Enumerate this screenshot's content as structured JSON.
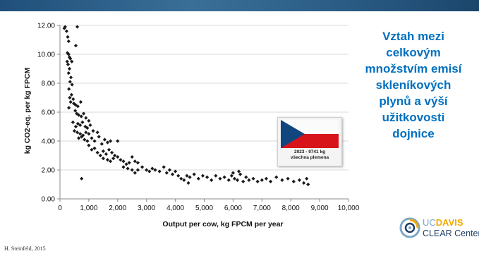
{
  "caption": {
    "lines": [
      "Vztah mezi",
      "celkovým",
      "množstvím emisí",
      "skleníkových",
      "plynů a výší",
      "užitkovosti",
      "dojnice"
    ],
    "color": "#0070c0"
  },
  "flag_card": {
    "line1": "2023 - 9741 kg",
    "line2": "všechna plemena",
    "flag_colors": [
      "#ffffff",
      "#d7141a",
      "#11457e"
    ]
  },
  "credit": "H. Steinfeld, 2015",
  "logo": {
    "uc": "UC",
    "davis": "DAVIS",
    "center": "CLEAR Center",
    "icon": "clear-center-swirl-icon"
  },
  "chart_data": {
    "type": "scatter",
    "xlabel": "Output per cow, kg FPCM per year",
    "ylabel": "kg CO2-eq. per kg FPCM",
    "xlim": [
      0,
      10000
    ],
    "ylim": [
      0,
      12
    ],
    "x_ticks": [
      0,
      1000,
      2000,
      3000,
      4000,
      5000,
      6000,
      7000,
      8000,
      9000,
      10000
    ],
    "x_tick_labels": [
      "0",
      "1,000",
      "2,000",
      "3,000",
      "4,000",
      "5,000",
      "6,000",
      "7,000",
      "8,000",
      "9,000",
      "10,000"
    ],
    "y_ticks": [
      0,
      2,
      4,
      6,
      8,
      10,
      12
    ],
    "y_tick_labels": [
      "0.00",
      "2.00",
      "4.00",
      "6.00",
      "8.00",
      "10.00",
      "12.00"
    ],
    "grid": true,
    "marker": "diamond",
    "marker_color": "#1a1a1a",
    "points": [
      [
        150,
        11.8
      ],
      [
        180,
        11.9
      ],
      [
        600,
        11.9
      ],
      [
        230,
        11.6
      ],
      [
        270,
        11.2
      ],
      [
        300,
        10.9
      ],
      [
        550,
        10.6
      ],
      [
        260,
        10.1
      ],
      [
        300,
        10.0
      ],
      [
        330,
        9.8
      ],
      [
        250,
        9.5
      ],
      [
        280,
        9.3
      ],
      [
        360,
        9.7
      ],
      [
        410,
        9.5
      ],
      [
        330,
        9.0
      ],
      [
        300,
        8.7
      ],
      [
        380,
        8.4
      ],
      [
        350,
        8.1
      ],
      [
        420,
        7.9
      ],
      [
        310,
        7.6
      ],
      [
        400,
        7.2
      ],
      [
        340,
        7.0
      ],
      [
        460,
        6.9
      ],
      [
        370,
        6.7
      ],
      [
        480,
        6.6
      ],
      [
        540,
        6.5
      ],
      [
        310,
        6.3
      ],
      [
        620,
        6.4
      ],
      [
        720,
        6.7
      ],
      [
        530,
        6.1
      ],
      [
        580,
        5.9
      ],
      [
        650,
        5.8
      ],
      [
        740,
        5.7
      ],
      [
        820,
        5.9
      ],
      [
        900,
        5.6
      ],
      [
        450,
        5.3
      ],
      [
        550,
        5.0
      ],
      [
        620,
        5.2
      ],
      [
        700,
        5.1
      ],
      [
        780,
        5.3
      ],
      [
        880,
        5.0
      ],
      [
        950,
        4.9
      ],
      [
        1000,
        5.4
      ],
      [
        1050,
        5.1
      ],
      [
        500,
        4.7
      ],
      [
        600,
        4.6
      ],
      [
        700,
        4.5
      ],
      [
        800,
        4.4
      ],
      [
        900,
        4.6
      ],
      [
        1000,
        4.5
      ],
      [
        1150,
        4.7
      ],
      [
        1300,
        4.6
      ],
      [
        650,
        4.2
      ],
      [
        750,
        4.3
      ],
      [
        850,
        4.1
      ],
      [
        950,
        4.0
      ],
      [
        1100,
        4.2
      ],
      [
        1200,
        4.0
      ],
      [
        1350,
        4.3
      ],
      [
        1450,
        3.8
      ],
      [
        1550,
        4.1
      ],
      [
        1650,
        3.9
      ],
      [
        1750,
        4.0
      ],
      [
        1000,
        3.7
      ],
      [
        1100,
        3.4
      ],
      [
        1200,
        3.5
      ],
      [
        1300,
        3.2
      ],
      [
        1400,
        3.0
      ],
      [
        1500,
        3.3
      ],
      [
        1600,
        3.1
      ],
      [
        1700,
        3.4
      ],
      [
        1800,
        3.2
      ],
      [
        1900,
        3.0
      ],
      [
        2000,
        4.0
      ],
      [
        1500,
        2.8
      ],
      [
        1650,
        2.7
      ],
      [
        1750,
        2.6
      ],
      [
        1850,
        2.8
      ],
      [
        2000,
        2.9
      ],
      [
        2100,
        2.7
      ],
      [
        2200,
        2.6
      ],
      [
        2300,
        2.4
      ],
      [
        2400,
        2.5
      ],
      [
        2500,
        2.9
      ],
      [
        2600,
        2.6
      ],
      [
        2700,
        2.5
      ],
      [
        2200,
        2.2
      ],
      [
        2350,
        2.1
      ],
      [
        2500,
        2.0
      ],
      [
        2600,
        1.8
      ],
      [
        2700,
        2.0
      ],
      [
        2850,
        2.2
      ],
      [
        3000,
        2.0
      ],
      [
        3100,
        1.9
      ],
      [
        3200,
        2.1
      ],
      [
        3300,
        2.0
      ],
      [
        3450,
        1.9
      ],
      [
        3600,
        2.2
      ],
      [
        3700,
        1.8
      ],
      [
        3800,
        2.0
      ],
      [
        3900,
        1.7
      ],
      [
        4000,
        1.9
      ],
      [
        4100,
        1.6
      ],
      [
        4200,
        1.4
      ],
      [
        4300,
        1.3
      ],
      [
        4400,
        1.6
      ],
      [
        4500,
        1.5
      ],
      [
        4650,
        1.7
      ],
      [
        4800,
        1.4
      ],
      [
        4950,
        1.6
      ],
      [
        5100,
        1.5
      ],
      [
        5250,
        1.3
      ],
      [
        5400,
        1.6
      ],
      [
        5550,
        1.4
      ],
      [
        5700,
        1.5
      ],
      [
        5850,
        1.3
      ],
      [
        5950,
        1.6
      ],
      [
        6050,
        1.4
      ],
      [
        6150,
        1.3
      ],
      [
        6250,
        1.7
      ],
      [
        6350,
        1.2
      ],
      [
        6450,
        1.5
      ],
      [
        6550,
        1.3
      ],
      [
        6700,
        1.4
      ],
      [
        6850,
        1.2
      ],
      [
        7000,
        1.3
      ],
      [
        7150,
        1.4
      ],
      [
        7300,
        1.2
      ],
      [
        7500,
        1.5
      ],
      [
        7700,
        1.3
      ],
      [
        7900,
        1.4
      ],
      [
        8100,
        1.2
      ],
      [
        8300,
        1.3
      ],
      [
        8450,
        1.1
      ],
      [
        8550,
        1.4
      ],
      [
        8600,
        1.0
      ],
      [
        4450,
        1.1
      ],
      [
        750,
        1.4
      ],
      [
        6000,
        1.8
      ],
      [
        6200,
        1.9
      ]
    ]
  }
}
